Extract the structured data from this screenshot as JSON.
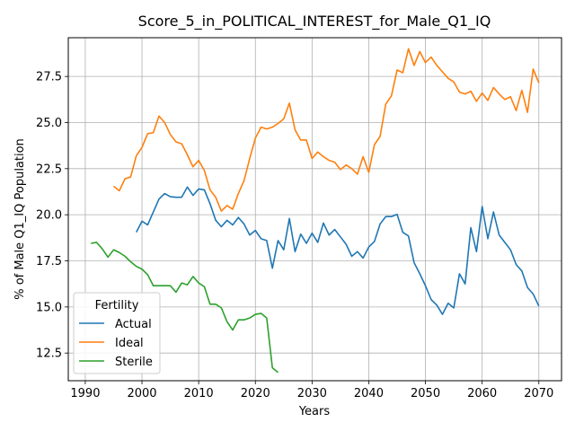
{
  "chart_data": {
    "type": "line",
    "title": "Score_5_in_POLITICAL_INTEREST_for_Male_Q1_IQ",
    "xlabel": "Years",
    "ylabel": "% of Male Q1_IQ Population",
    "xlim": [
      1987,
      2074
    ],
    "ylim": [
      11.0,
      29.6
    ],
    "xticks": [
      1990,
      2000,
      2010,
      2020,
      2030,
      2040,
      2050,
      2060,
      2070
    ],
    "yticks": [
      12.5,
      15.0,
      17.5,
      20.0,
      22.5,
      25.0,
      27.5
    ],
    "ytick_labels": [
      "12.5",
      "15.0",
      "17.5",
      "20.0",
      "22.5",
      "25.0",
      "27.5"
    ],
    "grid": true,
    "legend": {
      "title": "Fertility",
      "position": "lower-left"
    },
    "series": [
      {
        "name": "Actual",
        "color": "#1f77b4",
        "x": [
          1999,
          2000,
          2001,
          2002,
          2003,
          2004,
          2005,
          2006,
          2007,
          2008,
          2009,
          2010,
          2011,
          2012,
          2013,
          2014,
          2015,
          2016,
          2017,
          2018,
          2019,
          2020,
          2021,
          2022,
          2023,
          2024,
          2025,
          2026,
          2027,
          2028,
          2029,
          2030,
          2031,
          2032,
          2033,
          2034,
          2035,
          2036,
          2037,
          2038,
          2039,
          2040,
          2041,
          2042,
          2043,
          2044,
          2045,
          2046,
          2047,
          2048,
          2049,
          2050,
          2051,
          2052,
          2053,
          2054,
          2055,
          2056,
          2057,
          2058,
          2059,
          2060,
          2061,
          2062,
          2063,
          2064,
          2065,
          2066,
          2067,
          2068,
          2069,
          2070
        ],
        "y": [
          19.05,
          19.65,
          19.45,
          20.15,
          20.85,
          21.15,
          20.98,
          20.95,
          20.95,
          21.5,
          21.05,
          21.4,
          21.35,
          20.6,
          19.7,
          19.35,
          19.7,
          19.45,
          19.85,
          19.5,
          18.9,
          19.15,
          18.7,
          18.6,
          17.1,
          18.6,
          18.1,
          19.8,
          18.0,
          18.95,
          18.45,
          19.0,
          18.5,
          19.55,
          18.9,
          19.2,
          18.8,
          18.4,
          17.75,
          18.0,
          17.65,
          18.25,
          18.55,
          19.5,
          19.9,
          19.9,
          20.02,
          19.05,
          18.85,
          17.4,
          16.8,
          16.15,
          15.4,
          15.1,
          14.6,
          15.2,
          14.95,
          16.8,
          16.25,
          19.3,
          18.0,
          20.45,
          18.7,
          20.15,
          18.9,
          18.5,
          18.1,
          17.3,
          16.95,
          16.05,
          15.7,
          15.05
        ]
      },
      {
        "name": "Ideal",
        "color": "#ff7f0e",
        "x": [
          1995,
          1996,
          1997,
          1998,
          1999,
          2000,
          2001,
          2002,
          2003,
          2004,
          2005,
          2006,
          2007,
          2008,
          2009,
          2010,
          2011,
          2012,
          2013,
          2014,
          2015,
          2016,
          2017,
          2018,
          2019,
          2020,
          2021,
          2022,
          2023,
          2024,
          2025,
          2026,
          2027,
          2028,
          2029,
          2030,
          2031,
          2032,
          2033,
          2034,
          2035,
          2036,
          2037,
          2038,
          2039,
          2040,
          2041,
          2042,
          2043,
          2044,
          2045,
          2046,
          2047,
          2048,
          2049,
          2050,
          2051,
          2052,
          2053,
          2054,
          2055,
          2056,
          2057,
          2058,
          2059,
          2060,
          2061,
          2062,
          2063,
          2064,
          2065,
          2066,
          2067,
          2068,
          2069,
          2070
        ],
        "y": [
          21.55,
          21.3,
          21.95,
          22.05,
          23.2,
          23.65,
          24.4,
          24.45,
          25.35,
          25.0,
          24.35,
          23.95,
          23.85,
          23.25,
          22.6,
          22.95,
          22.4,
          21.35,
          20.95,
          20.2,
          20.5,
          20.3,
          21.15,
          21.85,
          23.05,
          24.15,
          24.75,
          24.65,
          24.75,
          24.95,
          25.2,
          26.05,
          24.6,
          24.05,
          24.05,
          23.05,
          23.4,
          23.15,
          22.95,
          22.85,
          22.45,
          22.7,
          22.5,
          22.2,
          23.15,
          22.3,
          23.8,
          24.25,
          26.0,
          26.45,
          27.85,
          27.7,
          29.0,
          28.1,
          28.85,
          28.25,
          28.55,
          28.1,
          27.75,
          27.4,
          27.2,
          26.65,
          26.55,
          26.7,
          26.15,
          26.6,
          26.2,
          26.9,
          26.55,
          26.25,
          26.4,
          25.65,
          26.75,
          25.55,
          27.9,
          27.15
        ]
      },
      {
        "name": "Sterile",
        "color": "#2ca02c",
        "x": [
          1991,
          1992,
          1993,
          1994,
          1995,
          1996,
          1997,
          1998,
          1999,
          2000,
          2001,
          2002,
          2003,
          2004,
          2005,
          2006,
          2007,
          2008,
          2009,
          2010,
          2011,
          2012,
          2013,
          2014,
          2015,
          2016,
          2017,
          2018,
          2019,
          2020,
          2021,
          2022,
          2023,
          2024
        ],
        "y": [
          18.45,
          18.5,
          18.15,
          17.7,
          18.1,
          17.95,
          17.75,
          17.45,
          17.2,
          17.05,
          16.75,
          16.15,
          16.15,
          16.15,
          16.15,
          15.8,
          16.3,
          16.2,
          16.65,
          16.3,
          16.1,
          15.15,
          15.15,
          14.95,
          14.2,
          13.75,
          14.3,
          14.3,
          14.4,
          14.6,
          14.65,
          14.4,
          11.7,
          11.45
        ]
      }
    ]
  }
}
